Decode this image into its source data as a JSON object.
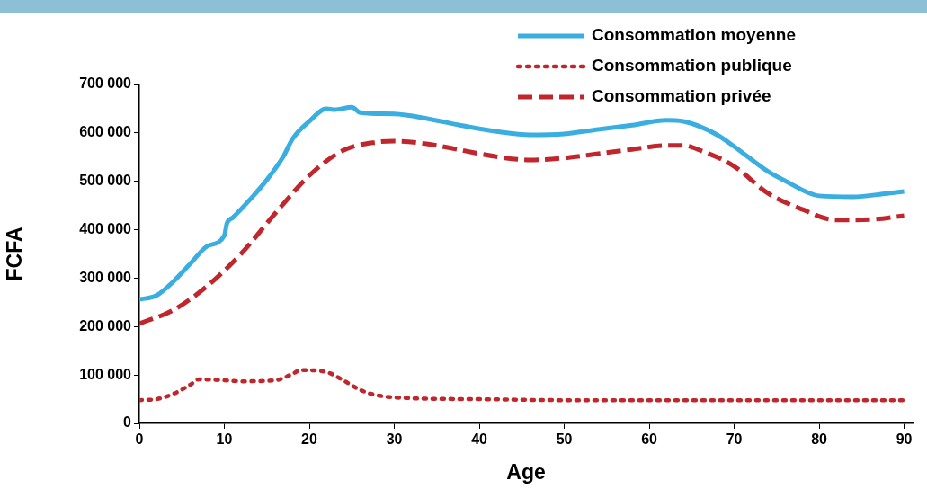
{
  "chart_data": {
    "type": "line",
    "xlabel": "Age",
    "ylabel": "FCFA",
    "xlim": [
      0,
      91
    ],
    "xticks": [
      0,
      10,
      20,
      30,
      40,
      50,
      60,
      70,
      80,
      90
    ],
    "ylim": [
      0,
      700000
    ],
    "yticks": [
      {
        "value": 0,
        "label": "0"
      },
      {
        "value": 100000,
        "label": "100 000"
      },
      {
        "value": 200000,
        "label": "200 000"
      },
      {
        "value": 300000,
        "label": "300 000"
      },
      {
        "value": 400000,
        "label": "400 000"
      },
      {
        "value": 500000,
        "label": "500 000"
      },
      {
        "value": 600000,
        "label": "600 000"
      },
      {
        "value": 700000,
        "label": "700 000"
      }
    ],
    "grid": false,
    "legend": "top right",
    "marker": "none",
    "series": [
      {
        "name": "Consommation moyenne",
        "color": "#3aaee0",
        "line_style": "solid",
        "x": [
          0,
          2,
          4,
          6,
          8,
          10,
          10.3,
          11,
          13,
          15,
          17,
          18,
          20,
          22,
          23,
          25,
          26,
          30,
          34,
          38,
          42,
          46,
          50,
          54,
          58,
          62,
          64,
          66,
          68,
          70,
          74,
          76,
          80,
          84,
          88,
          90
        ],
        "values": [
          256000,
          264000,
          293000,
          330000,
          366000,
          388000,
          413000,
          425000,
          462000,
          503000,
          553000,
          587000,
          624000,
          650000,
          648000,
          653000,
          642000,
          639000,
          629000,
          615000,
          603000,
          596000,
          598000,
          607000,
          616000,
          626000,
          624000,
          613000,
          596000,
          572000,
          520000,
          501000,
          470000,
          468000,
          475000,
          479000
        ]
      },
      {
        "name": "Consommation publique",
        "color": "#c0272d",
        "line_style": "dotted",
        "x": [
          0,
          2,
          4,
          6,
          7,
          10,
          12,
          16,
          18,
          19,
          22,
          24,
          26,
          28,
          32,
          40,
          50,
          90
        ],
        "values": [
          48000,
          50000,
          61000,
          80000,
          91000,
          89000,
          87000,
          89000,
          102000,
          110000,
          106000,
          89000,
          69000,
          58000,
          52000,
          50000,
          48000,
          48000
        ]
      },
      {
        "name": "Consommation privée",
        "color": "#c0272d",
        "line_style": "dashed",
        "x": [
          0,
          4,
          8,
          12,
          16,
          20,
          24,
          28,
          30,
          34,
          38,
          42,
          46,
          50,
          54,
          58,
          62,
          64,
          66,
          70,
          74,
          78,
          82,
          86,
          90
        ],
        "values": [
          206000,
          234000,
          284000,
          351000,
          434000,
          512000,
          564000,
          581000,
          583000,
          577000,
          564000,
          551000,
          544000,
          548000,
          557000,
          566000,
          574000,
          574000,
          564000,
          531000,
          475000,
          442000,
          420000,
          421000,
          429000
        ]
      }
    ]
  }
}
